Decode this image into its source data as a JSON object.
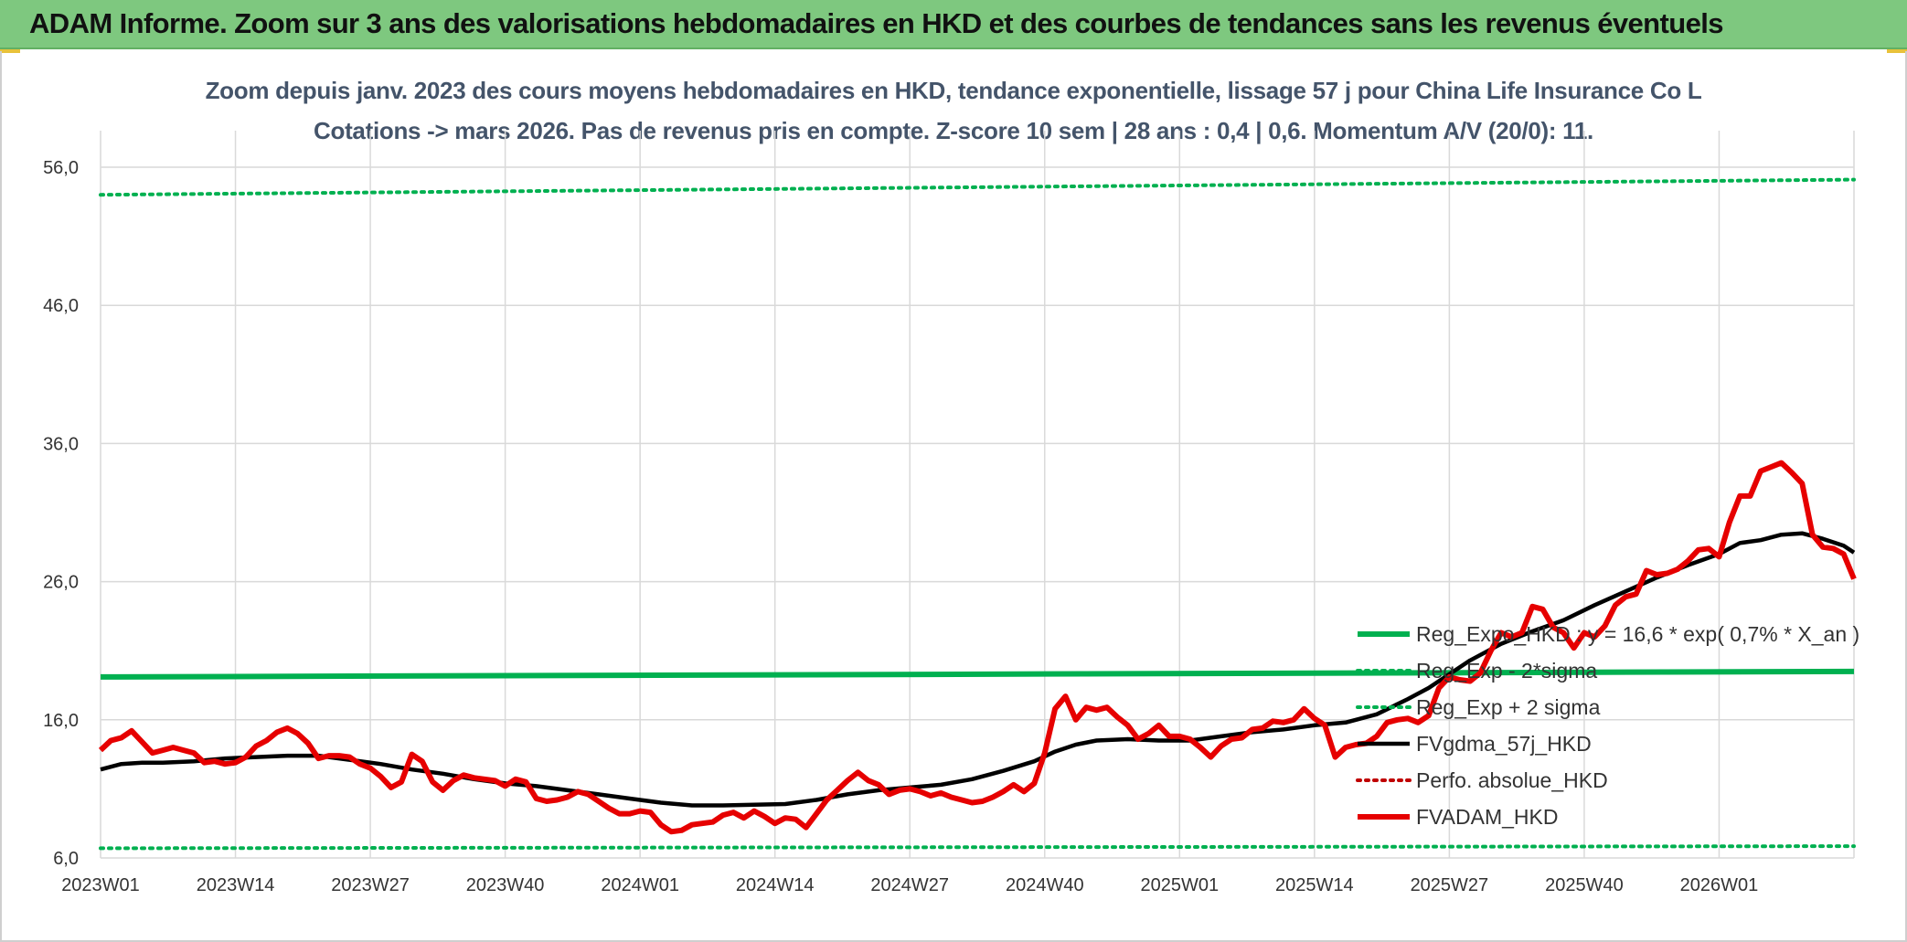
{
  "banner": {
    "title": "ADAM Informe. Zoom sur 3 ans des valorisations hebdomadaires en HKD et des courbes de tendances sans les revenus éventuels"
  },
  "chart_data": {
    "type": "line",
    "title": "Zoom depuis janv. 2023 des cours moyens hebdomadaires en HKD, tendance exponentielle, lissage 57 j pour China Life Insurance Co L",
    "subtitle": "Cotations -> mars 2026. Pas de revenus pris en compte. Z-score 10 sem | 28 ans : 0,4 | 0,6. Momentum A/V (20/0): 11.",
    "xlabel": "",
    "ylabel": "",
    "ylim": [
      6,
      56
    ],
    "y_ticks": [
      "56,0",
      "46,0",
      "36,0",
      "26,0",
      "16,0",
      "6,0"
    ],
    "y_tick_values": [
      56,
      46,
      36,
      26,
      16,
      6
    ],
    "x_ticks": [
      "2023W01",
      "2023W14",
      "2023W27",
      "2023W40",
      "2024W01",
      "2024W14",
      "2024W27",
      "2024W40",
      "2025W01",
      "2025W14",
      "2025W27",
      "2025W40",
      "2026W01"
    ],
    "x_tick_weeks": [
      0,
      13,
      26,
      39,
      52,
      65,
      78,
      91,
      104,
      117,
      130,
      143,
      156
    ],
    "x_range_weeks": [
      0,
      169
    ],
    "grid": true,
    "legend_position": "bottom-right",
    "colors": {
      "trend": "#00b050",
      "sigma": "#00b050",
      "smoothing": "#000000",
      "perfo": "#c00000",
      "adam": "#e60000"
    },
    "series": [
      {
        "name": "Reg_Expo_HKD : y = 16,6 * exp( 0,7% *  X_an )",
        "style": "solid-thick",
        "color": "#00b050",
        "points": [
          [
            0,
            19.1
          ],
          [
            169,
            19.5
          ]
        ]
      },
      {
        "name": "Reg_Exp - 2*sigma",
        "style": "dotted",
        "color": "#00b050",
        "points": [
          [
            0,
            6.7
          ],
          [
            169,
            6.85
          ]
        ]
      },
      {
        "name": "Reg_Exp + 2 sigma",
        "style": "dotted",
        "color": "#00b050",
        "points": [
          [
            0,
            54.0
          ],
          [
            169,
            55.1
          ]
        ]
      },
      {
        "name": "FVgdma_57j_HKD",
        "style": "solid",
        "color": "#000000",
        "points": [
          [
            0,
            12.4
          ],
          [
            2,
            12.8
          ],
          [
            4,
            12.9
          ],
          [
            6,
            12.9
          ],
          [
            9,
            13.0
          ],
          [
            12,
            13.2
          ],
          [
            15,
            13.3
          ],
          [
            18,
            13.4
          ],
          [
            21,
            13.4
          ],
          [
            24,
            13.1
          ],
          [
            27,
            12.8
          ],
          [
            30,
            12.4
          ],
          [
            33,
            12.1
          ],
          [
            36,
            11.7
          ],
          [
            39,
            11.4
          ],
          [
            42,
            11.2
          ],
          [
            45,
            10.9
          ],
          [
            48,
            10.6
          ],
          [
            51,
            10.3
          ],
          [
            54,
            10.0
          ],
          [
            57,
            9.8
          ],
          [
            60,
            9.8
          ],
          [
            63,
            9.85
          ],
          [
            66,
            9.9
          ],
          [
            69,
            10.2
          ],
          [
            72,
            10.6
          ],
          [
            75,
            10.9
          ],
          [
            78,
            11.1
          ],
          [
            81,
            11.3
          ],
          [
            84,
            11.7
          ],
          [
            87,
            12.3
          ],
          [
            90,
            13.0
          ],
          [
            92,
            13.7
          ],
          [
            94,
            14.2
          ],
          [
            96,
            14.5
          ],
          [
            99,
            14.6
          ],
          [
            102,
            14.5
          ],
          [
            105,
            14.5
          ],
          [
            108,
            14.8
          ],
          [
            111,
            15.1
          ],
          [
            114,
            15.3
          ],
          [
            117,
            15.6
          ],
          [
            120,
            15.8
          ],
          [
            123,
            16.4
          ],
          [
            126,
            17.5
          ],
          [
            128,
            18.3
          ],
          [
            130,
            19.3
          ],
          [
            132,
            20.3
          ],
          [
            135,
            21.5
          ],
          [
            138,
            22.4
          ],
          [
            141,
            23.2
          ],
          [
            144,
            24.3
          ],
          [
            147,
            25.3
          ],
          [
            150,
            26.3
          ],
          [
            153,
            27.2
          ],
          [
            156,
            28.0
          ],
          [
            158,
            28.8
          ],
          [
            160,
            29.0
          ],
          [
            162,
            29.4
          ],
          [
            164,
            29.5
          ],
          [
            166,
            29.1
          ],
          [
            168,
            28.6
          ],
          [
            169,
            28.1
          ]
        ]
      },
      {
        "name": "Perfo. absolue_HKD",
        "style": "dotted",
        "color": "#c00000",
        "points": []
      },
      {
        "name": "FVADAM_HKD",
        "style": "solid-thick",
        "color": "#e60000",
        "points": [
          [
            0,
            13.8
          ],
          [
            1,
            14.5
          ],
          [
            2,
            14.7
          ],
          [
            3,
            15.2
          ],
          [
            4,
            14.4
          ],
          [
            5,
            13.6
          ],
          [
            6,
            13.8
          ],
          [
            7,
            14.0
          ],
          [
            8,
            13.8
          ],
          [
            9,
            13.6
          ],
          [
            10,
            12.9
          ],
          [
            11,
            13.0
          ],
          [
            12,
            12.8
          ],
          [
            13,
            12.9
          ],
          [
            14,
            13.3
          ],
          [
            15,
            14.1
          ],
          [
            16,
            14.5
          ],
          [
            17,
            15.1
          ],
          [
            18,
            15.4
          ],
          [
            19,
            15.0
          ],
          [
            20,
            14.3
          ],
          [
            21,
            13.2
          ],
          [
            22,
            13.4
          ],
          [
            23,
            13.4
          ],
          [
            24,
            13.3
          ],
          [
            25,
            12.8
          ],
          [
            26,
            12.5
          ],
          [
            27,
            11.9
          ],
          [
            28,
            11.1
          ],
          [
            29,
            11.5
          ],
          [
            30,
            13.5
          ],
          [
            31,
            13.0
          ],
          [
            32,
            11.5
          ],
          [
            33,
            10.9
          ],
          [
            34,
            11.6
          ],
          [
            35,
            12.0
          ],
          [
            36,
            11.8
          ],
          [
            37,
            11.7
          ],
          [
            38,
            11.6
          ],
          [
            39,
            11.2
          ],
          [
            40,
            11.7
          ],
          [
            41,
            11.5
          ],
          [
            42,
            10.3
          ],
          [
            43,
            10.1
          ],
          [
            44,
            10.2
          ],
          [
            45,
            10.4
          ],
          [
            46,
            10.8
          ],
          [
            47,
            10.6
          ],
          [
            48,
            10.1
          ],
          [
            49,
            9.6
          ],
          [
            50,
            9.2
          ],
          [
            51,
            9.2
          ],
          [
            52,
            9.4
          ],
          [
            53,
            9.3
          ],
          [
            54,
            8.4
          ],
          [
            55,
            7.9
          ],
          [
            56,
            8.0
          ],
          [
            57,
            8.4
          ],
          [
            58,
            8.5
          ],
          [
            59,
            8.6
          ],
          [
            60,
            9.1
          ],
          [
            61,
            9.3
          ],
          [
            62,
            8.9
          ],
          [
            63,
            9.4
          ],
          [
            64,
            9.0
          ],
          [
            65,
            8.5
          ],
          [
            66,
            8.9
          ],
          [
            67,
            8.8
          ],
          [
            68,
            8.2
          ],
          [
            69,
            9.2
          ],
          [
            70,
            10.2
          ],
          [
            71,
            10.9
          ],
          [
            72,
            11.6
          ],
          [
            73,
            12.2
          ],
          [
            74,
            11.6
          ],
          [
            75,
            11.3
          ],
          [
            76,
            10.6
          ],
          [
            77,
            10.9
          ],
          [
            78,
            11.0
          ],
          [
            79,
            10.8
          ],
          [
            80,
            10.5
          ],
          [
            81,
            10.7
          ],
          [
            82,
            10.4
          ],
          [
            83,
            10.2
          ],
          [
            84,
            10.0
          ],
          [
            85,
            10.1
          ],
          [
            86,
            10.4
          ],
          [
            87,
            10.8
          ],
          [
            88,
            11.3
          ],
          [
            89,
            10.8
          ],
          [
            90,
            11.4
          ],
          [
            91,
            13.6
          ],
          [
            92,
            16.8
          ],
          [
            93,
            17.7
          ],
          [
            94,
            16.0
          ],
          [
            95,
            16.9
          ],
          [
            96,
            16.7
          ],
          [
            97,
            16.9
          ],
          [
            98,
            16.2
          ],
          [
            99,
            15.6
          ],
          [
            100,
            14.6
          ],
          [
            101,
            15.0
          ],
          [
            102,
            15.6
          ],
          [
            103,
            14.8
          ],
          [
            104,
            14.8
          ],
          [
            105,
            14.6
          ],
          [
            106,
            14.0
          ],
          [
            107,
            13.3
          ],
          [
            108,
            14.1
          ],
          [
            109,
            14.6
          ],
          [
            110,
            14.7
          ],
          [
            111,
            15.3
          ],
          [
            112,
            15.4
          ],
          [
            113,
            15.9
          ],
          [
            114,
            15.8
          ],
          [
            115,
            16.0
          ],
          [
            116,
            16.8
          ],
          [
            117,
            16.1
          ],
          [
            118,
            15.6
          ],
          [
            119,
            13.3
          ],
          [
            120,
            14.0
          ],
          [
            121,
            14.2
          ],
          [
            122,
            14.3
          ],
          [
            123,
            14.8
          ],
          [
            124,
            15.8
          ],
          [
            125,
            16.0
          ],
          [
            126,
            16.1
          ],
          [
            127,
            15.8
          ],
          [
            128,
            16.3
          ],
          [
            129,
            18.3
          ],
          [
            130,
            19.1
          ],
          [
            131,
            18.9
          ],
          [
            132,
            18.8
          ],
          [
            133,
            19.4
          ],
          [
            134,
            21.0
          ],
          [
            135,
            22.3
          ],
          [
            136,
            22.0
          ],
          [
            137,
            22.3
          ],
          [
            138,
            24.2
          ],
          [
            139,
            24.0
          ],
          [
            140,
            22.7
          ],
          [
            141,
            22.3
          ],
          [
            142,
            21.2
          ],
          [
            143,
            22.3
          ],
          [
            144,
            22.0
          ],
          [
            145,
            22.8
          ],
          [
            146,
            24.3
          ],
          [
            147,
            24.9
          ],
          [
            148,
            25.1
          ],
          [
            149,
            26.8
          ],
          [
            150,
            26.5
          ],
          [
            151,
            26.6
          ],
          [
            152,
            26.9
          ],
          [
            153,
            27.5
          ],
          [
            154,
            28.3
          ],
          [
            155,
            28.4
          ],
          [
            156,
            27.8
          ],
          [
            157,
            30.3
          ],
          [
            158,
            32.2
          ],
          [
            159,
            32.2
          ],
          [
            160,
            34.0
          ],
          [
            161,
            34.3
          ],
          [
            162,
            34.6
          ],
          [
            163,
            33.9
          ],
          [
            164,
            33.1
          ],
          [
            165,
            29.4
          ],
          [
            166,
            28.5
          ],
          [
            167,
            28.4
          ],
          [
            168,
            28.0
          ],
          [
            169,
            26.2
          ]
        ]
      }
    ]
  }
}
